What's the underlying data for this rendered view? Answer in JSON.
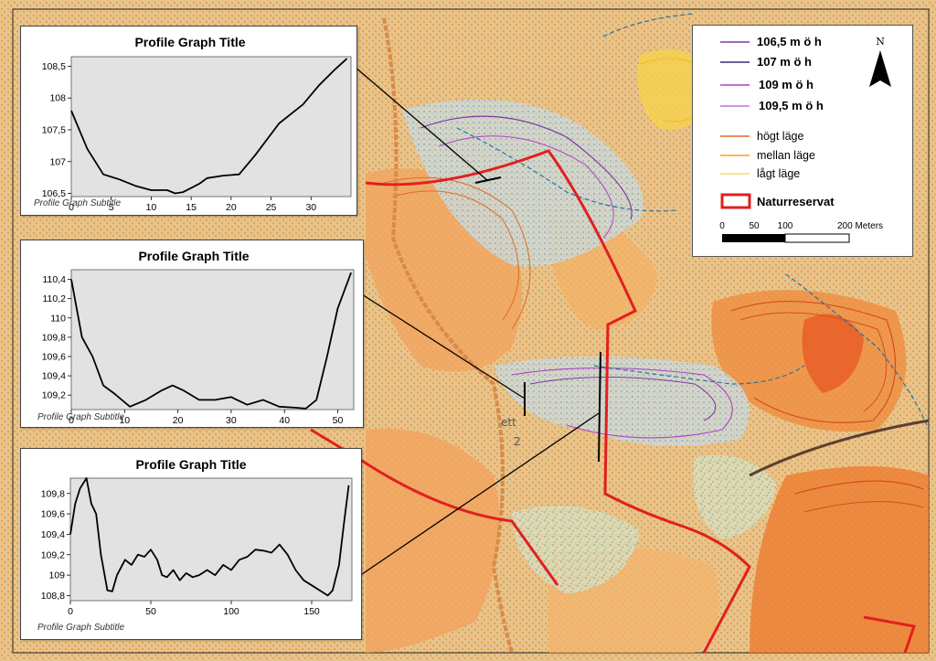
{
  "map": {
    "labels": {
      "area_label_top": "ett",
      "area_label_bottom": "2"
    }
  },
  "legend": {
    "contours": [
      {
        "label": "106,5 m ö h",
        "color": "#7a3aa0"
      },
      {
        "label": "107 m ö h",
        "color": "#3a2a7a"
      },
      {
        "label": "109 m ö h",
        "color": "#b040c8"
      },
      {
        "label": "109,5 m ö h",
        "color": "#c070d8"
      }
    ],
    "levels": [
      {
        "label": "högt läge",
        "color": "#e06a2a"
      },
      {
        "label": "mellan läge",
        "color": "#f0a020"
      },
      {
        "label": "lågt läge",
        "color": "#f4e060"
      }
    ],
    "reserve": {
      "label": "Naturreservat",
      "color": "#e02020"
    },
    "north_label": "N",
    "scalebar": {
      "ticks": [
        "0",
        "50",
        "100",
        "200 Meters"
      ]
    }
  },
  "chart_data": [
    {
      "type": "line",
      "title": "Profile Graph Title",
      "subtitle": "Profile Graph Subtitle",
      "xlim": [
        0,
        35
      ],
      "ylim": [
        106.45,
        108.65
      ],
      "xticks": [
        0,
        5,
        10,
        15,
        20,
        25,
        30
      ],
      "xticklabels": [
        "0",
        "5",
        "10",
        "15",
        "20",
        "25",
        "30"
      ],
      "yticks": [
        106.5,
        107,
        107.5,
        108,
        108.5
      ],
      "yticklabels": [
        "106,5",
        "107",
        "107,5",
        "108",
        "108,5"
      ],
      "x": [
        0,
        2,
        4,
        6,
        8,
        10,
        12,
        13,
        14,
        16,
        17,
        19,
        21,
        23,
        26,
        29,
        31,
        33,
        34.5
      ],
      "y": [
        107.8,
        107.2,
        106.8,
        106.72,
        106.62,
        106.55,
        106.55,
        106.5,
        106.52,
        106.65,
        106.74,
        106.78,
        106.8,
        107.1,
        107.6,
        107.9,
        108.2,
        108.45,
        108.62
      ]
    },
    {
      "type": "line",
      "title": "Profile Graph Title",
      "subtitle": "Profile Graph Subtitle",
      "xlim": [
        0,
        53
      ],
      "ylim": [
        109.05,
        110.5
      ],
      "xticks": [
        0,
        10,
        20,
        30,
        40,
        50
      ],
      "xticklabels": [
        "0",
        "10",
        "20",
        "30",
        "40",
        "50"
      ],
      "yticks": [
        109.2,
        109.4,
        109.6,
        109.8,
        110,
        110.2,
        110.4
      ],
      "yticklabels": [
        "109,2",
        "109,4",
        "109,6",
        "109,8",
        "110",
        "110,2",
        "110,4"
      ],
      "x": [
        0,
        2,
        4,
        6,
        8,
        11,
        14,
        17,
        19,
        21,
        24,
        27,
        30,
        33,
        36,
        39,
        42,
        44,
        46,
        48,
        50,
        52.5
      ],
      "y": [
        110.4,
        109.8,
        109.6,
        109.3,
        109.22,
        109.08,
        109.15,
        109.25,
        109.3,
        109.25,
        109.15,
        109.15,
        109.18,
        109.1,
        109.15,
        109.08,
        109.07,
        109.06,
        109.15,
        109.6,
        110.1,
        110.47
      ]
    },
    {
      "type": "line",
      "title": "Profile Graph Title",
      "subtitle": "Profile Graph Subtitle",
      "xlim": [
        0,
        175
      ],
      "ylim": [
        108.75,
        109.95
      ],
      "xticks": [
        0,
        50,
        100,
        150
      ],
      "xticklabels": [
        "0",
        "50",
        "100",
        "150"
      ],
      "yticks": [
        108.8,
        109,
        109.2,
        109.4,
        109.6,
        109.8
      ],
      "yticklabels": [
        "108,8",
        "109",
        "109,2",
        "109,4",
        "109,6",
        "109,8"
      ],
      "x": [
        0,
        3,
        6,
        10,
        13,
        16,
        19,
        23,
        26,
        29,
        34,
        38,
        42,
        46,
        50,
        54,
        57,
        60,
        64,
        68,
        72,
        76,
        80,
        85,
        90,
        95,
        100,
        105,
        110,
        115,
        120,
        125,
        130,
        135,
        140,
        145,
        150,
        155,
        160,
        163,
        167,
        170,
        173
      ],
      "y": [
        109.4,
        109.7,
        109.85,
        109.95,
        109.7,
        109.6,
        109.2,
        108.85,
        108.84,
        109.0,
        109.15,
        109.1,
        109.2,
        109.18,
        109.25,
        109.15,
        109.0,
        108.98,
        109.05,
        108.95,
        109.02,
        108.98,
        109.0,
        109.05,
        109.0,
        109.1,
        109.05,
        109.15,
        109.18,
        109.25,
        109.24,
        109.22,
        109.3,
        109.2,
        109.05,
        108.95,
        108.9,
        108.85,
        108.8,
        108.85,
        109.1,
        109.5,
        109.88
      ]
    }
  ]
}
